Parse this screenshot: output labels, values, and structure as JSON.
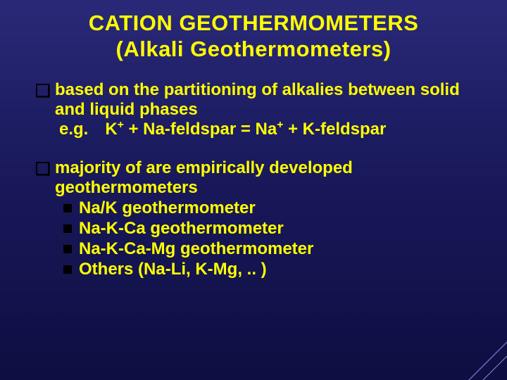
{
  "title_line1": "CATION GEOTHERMOMETERS",
  "title_line2": "(Alkali Geothermometers)",
  "bullets": [
    {
      "text": "based on the partitioning of alkalies between solid and liquid phases",
      "sub_text_html": "e.g. K<sup>+</sup> + Na-feldspar = Na<sup>+</sup> + K-feldspar",
      "children": []
    },
    {
      "text": "majority of are empirically developed geothermometers",
      "sub_text_html": "",
      "children": [
        "Na/K geothermometer",
        "Na-K-Ca geothermometer",
        "Na-K-Ca-Mg geothermometer",
        "Others (Na-Li, K-Mg, .. )"
      ]
    }
  ],
  "style": {
    "slide_width": 720,
    "slide_height": 540,
    "background_gradient": [
      "#2a2978",
      "#1a1a5e",
      "#0e0e42"
    ],
    "text_color": "#ffff00",
    "bullet_outline_color": "#000000",
    "sub_bullet_color": "#000000",
    "title_fontsize": 31,
    "body_fontsize": 24,
    "font_family": "Arial",
    "font_weight": "bold"
  }
}
